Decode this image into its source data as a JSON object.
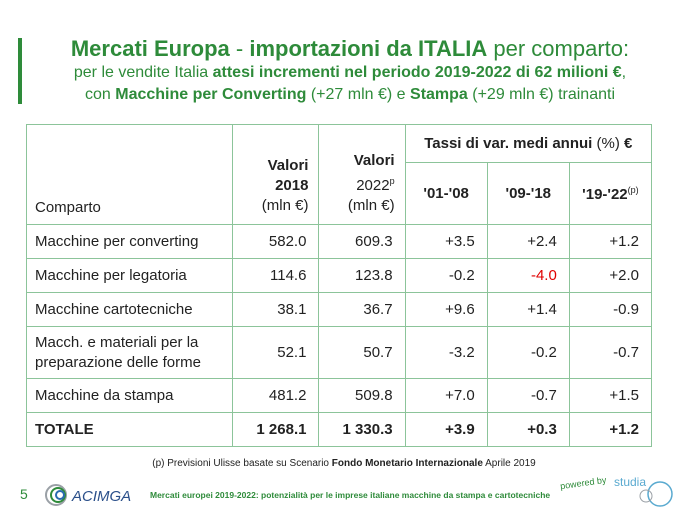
{
  "title": {
    "line1_bold": "Mercati Europa",
    "line1_sep": " - ",
    "line1_bold2": "importazioni da ITALIA",
    "line1_rest": " per comparto:",
    "line2_pre": "per le vendite Italia ",
    "line2_bold": "attesi incrementi nel periodo 2019-2022 di 62 milioni €",
    "line2_post": ",",
    "line3_pre": "con ",
    "line3_bold1": "Macchine per Converting",
    "line3_mid": " (+27 mln €) e ",
    "line3_bold2": "Stampa",
    "line3_post": " (+29 mln €) trainanti"
  },
  "table": {
    "col_comparto": "Comparto",
    "col_val2018_a": "Valori",
    "col_val2018_b": "2018",
    "col_val2018_c": "(mln €)",
    "col_val2022_a": "Valori",
    "col_val2022_b": "2022",
    "col_val2022_sup": "p",
    "col_val2022_c": "(mln €)",
    "tassi_bold": "Tassi di var. medi annui",
    "tassi_unit": " (%)",
    "tassi_euro": " €",
    "period1": "'01-'08",
    "period2": "'09-'18",
    "period3": "'19-'22",
    "period3_sup": "(p)",
    "rows": [
      {
        "label": "Macchine per converting",
        "v2018": "582.0",
        "v2022": "609.3",
        "p1": "+3.5",
        "p2": "+2.4",
        "p3": "+1.2"
      },
      {
        "label": "Macchine per legatoria",
        "v2018": "114.6",
        "v2022": "123.8",
        "p1": "-0.2",
        "p2": "-4.0",
        "p3": "+2.0"
      },
      {
        "label": "Macchine cartotecniche",
        "v2018": "38.1",
        "v2022": "36.7",
        "p1": "+9.6",
        "p2": "+1.4",
        "p3": "-0.9"
      },
      {
        "label_a": "Macch. e materiali per la",
        "label_b": "preparazione delle forme",
        "v2018": "52.1",
        "v2022": "50.7",
        "p1": "-3.2",
        "p2": "-0.2",
        "p3": "-0.7"
      },
      {
        "label": "Macchine da stampa",
        "v2018": "481.2",
        "v2022": "509.8",
        "p1": "+7.0",
        "p2": "-0.7",
        "p3": "+1.5"
      }
    ],
    "total": {
      "label": "TOTALE",
      "v2018": "1 268.1",
      "v2022": "1 330.3",
      "p1": "+3.9",
      "p2": "+0.3",
      "p3": "+1.2"
    },
    "highlight_color": "#e00000"
  },
  "footnote": {
    "pre": "(p) Previsioni Ulisse basate su Scenario ",
    "bold": "Fondo Monetario  Internazionale",
    "post": " Aprile 2019"
  },
  "footer": {
    "page_number": "5",
    "logo_text": "ACIMGA",
    "text": "Mercati europei 2019-2022: potenzialità per le imprese italiane macchine da stampa e cartotecniche",
    "powered_by": "powered by",
    "studia_text": "studia"
  },
  "colors": {
    "accent": "#2e8b3a",
    "border": "#8cc49a",
    "negative": "#e00000"
  }
}
